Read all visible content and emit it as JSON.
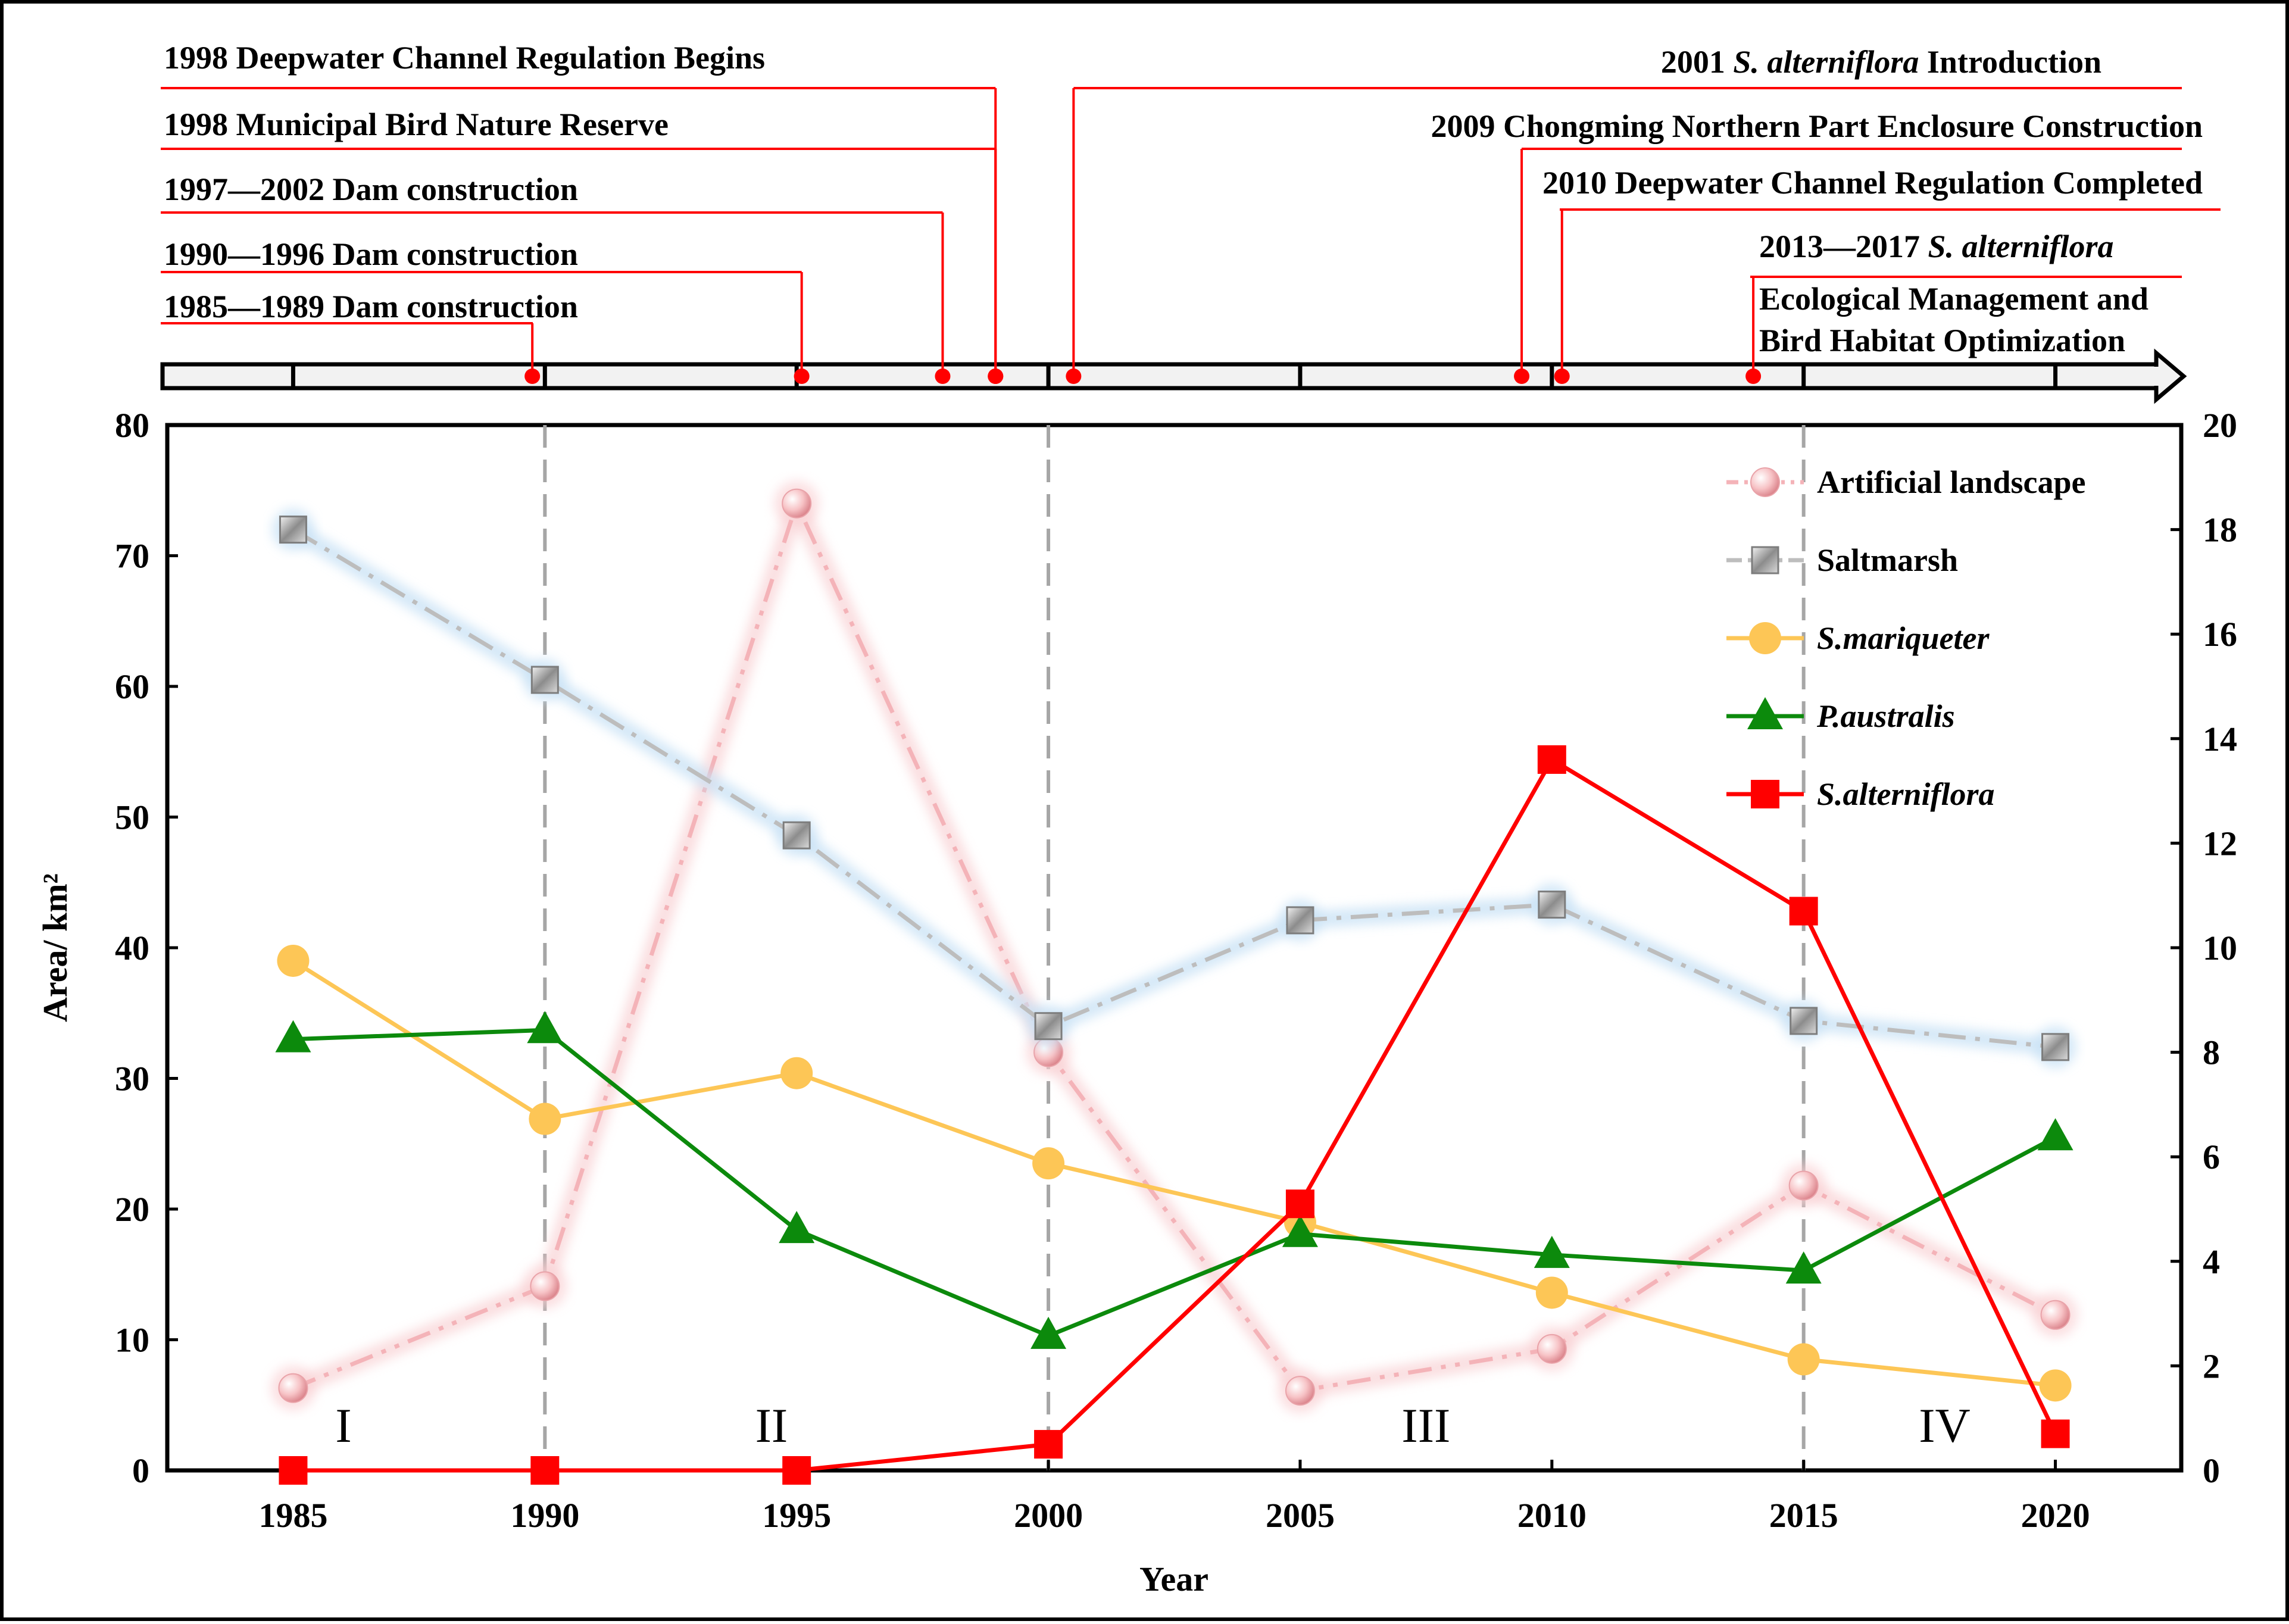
{
  "chart_data": {
    "type": "line",
    "x": [
      1985,
      1990,
      1995,
      2000,
      2005,
      2010,
      2015,
      2020
    ],
    "xlabel": "Year",
    "ylabel": "Area/ km²",
    "ylim_left": [
      0,
      80
    ],
    "ylim_right": [
      0,
      20
    ],
    "yticks_left": [
      0,
      10,
      20,
      30,
      40,
      50,
      60,
      70,
      80
    ],
    "yticks_right": [
      0,
      2,
      4,
      6,
      8,
      10,
      12,
      14,
      16,
      18,
      20
    ],
    "series": [
      {
        "name": "Artificial landscape",
        "axis": "left",
        "color": "#f4b3b8",
        "style": "dash-dot-dot",
        "marker": "sphere",
        "values": [
          6.3,
          14.1,
          74,
          32,
          6.1,
          9.3,
          21.8,
          11.9
        ]
      },
      {
        "name": "Saltmarsh",
        "axis": "left",
        "color": "#bdbdbd",
        "style": "dash-dot",
        "marker": "square",
        "values": [
          72,
          60.5,
          48.6,
          34,
          42.1,
          43.3,
          34.4,
          32.4
        ]
      },
      {
        "name": "S.mariqueter",
        "axis": "left",
        "color": "#fdc656",
        "style": "solid",
        "marker": "circle",
        "values": [
          39,
          26.9,
          30.4,
          23.5,
          19,
          13.6,
          8.5,
          6.5
        ]
      },
      {
        "name": "P.australis",
        "axis": "left",
        "color": "#0c8a0c",
        "style": "solid",
        "marker": "triangle",
        "values": [
          33,
          33.7,
          18.4,
          10.3,
          18.1,
          16.5,
          15.3,
          25.5
        ]
      },
      {
        "name": "S.alterniflora",
        "axis": "right",
        "color": "#ff0000",
        "style": "solid",
        "marker": "square",
        "values": [
          0,
          0,
          0,
          0.5,
          5.1,
          13.6,
          10.7,
          0.7
        ]
      }
    ],
    "period_labels": [
      {
        "label": "I",
        "year": 1986
      },
      {
        "label": "II",
        "year": 1994.5
      },
      {
        "label": "III",
        "year": 2007.5
      },
      {
        "label": "IV",
        "year": 2017.8
      }
    ],
    "period_boundaries": [
      1990,
      2000,
      2015
    ]
  },
  "timeline": {
    "events": [
      {
        "text": "1998 Deepwater Channel Regulation Begins",
        "year": 1998.95
      },
      {
        "text": "1998 Municipal Bird Nature Reserve",
        "year": 1998.95
      },
      {
        "text": "1997—2002 Dam construction",
        "year": 1997.9
      },
      {
        "text": "1990—1996 Dam construction",
        "year": 1995.1
      },
      {
        "text": "1985—1989 Dam construction",
        "year": 1989.75
      },
      {
        "prefix": "2001",
        "italic": "S. alterniflora",
        "suffix": "Introduction",
        "year": 2000.5
      },
      {
        "text": "2009 Chongming Northern Part Enclosure Construction",
        "year": 2009.4
      },
      {
        "text": "2010 Deepwater Channel Regulation Completed",
        "year": 2010.2
      },
      {
        "prefix": "2013—2017",
        "italic": "S. alterniflora",
        "suffix": "",
        "line2": "Ecological Management and",
        "line3": "Bird Habitat Optimization",
        "year": 2014
      }
    ]
  }
}
